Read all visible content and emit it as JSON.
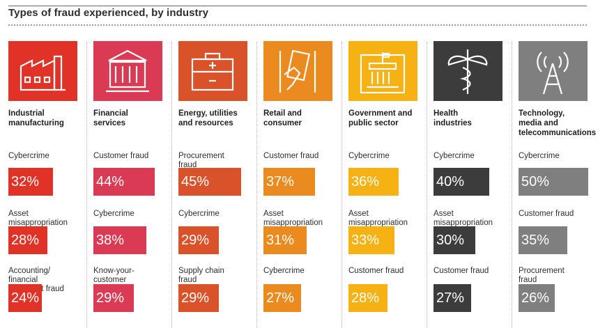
{
  "title": "Types of fraud experienced, by industry",
  "industries": [
    {
      "name": "Industrial\nmanufacturing",
      "icon": "factory-icon",
      "color": "#e03226",
      "rows": [
        {
          "label": "Cybercrime",
          "pct": "32%",
          "value": 32
        },
        {
          "label": "Asset\nmisappropriation",
          "pct": "28%",
          "value": 28
        },
        {
          "label": "Accounting/\nfinancial\nstatement fraud",
          "pct": "24%",
          "value": 24
        }
      ]
    },
    {
      "name": "Financial\nservices",
      "icon": "bank-icon",
      "color": "#db3a54",
      "rows": [
        {
          "label": "Customer fraud",
          "pct": "44%",
          "value": 44
        },
        {
          "label": "Cybercrime",
          "pct": "38%",
          "value": 38
        },
        {
          "label": "Know-your-\ncustomer\nfailure",
          "pct": "29%",
          "value": 29
        }
      ]
    },
    {
      "name": "Energy, utilities\nand resources",
      "icon": "battery-icon",
      "color": "#d9522a",
      "rows": [
        {
          "label": "Procurement\nfraud",
          "pct": "45%",
          "value": 45
        },
        {
          "label": "Cybercrime",
          "pct": "29%",
          "value": 29
        },
        {
          "label": "Supply chain\nfraud",
          "pct": "29%",
          "value": 29
        }
      ]
    },
    {
      "name": "Retail and\nconsumer",
      "icon": "card-in-hand-icon",
      "color": "#eb8a1e",
      "rows": [
        {
          "label": "Customer fraud",
          "pct": "37%",
          "value": 37
        },
        {
          "label": "Asset\nmisappropriation",
          "pct": "31%",
          "value": 31
        },
        {
          "label": "Cybercrime",
          "pct": "27%",
          "value": 27
        }
      ]
    },
    {
      "name": "Government and\npublic sector",
      "icon": "government-building-icon",
      "color": "#f6b112",
      "rows": [
        {
          "label": "Cybercrime",
          "pct": "36%",
          "value": 36
        },
        {
          "label": "Asset\nmisappropriation",
          "pct": "33%",
          "value": 33
        },
        {
          "label": "Customer fraud",
          "pct": "28%",
          "value": 28
        }
      ]
    },
    {
      "name": "Health\nindustries",
      "icon": "caduceus-icon",
      "color": "#3c3c3c",
      "rows": [
        {
          "label": "Cybercrime",
          "pct": "40%",
          "value": 40
        },
        {
          "label": "Asset\nmisappropriation",
          "pct": "30%",
          "value": 30
        },
        {
          "label": "Customer fraud",
          "pct": "27%",
          "value": 27
        }
      ]
    },
    {
      "name": "Technology,\nmedia and\ntelecommunications",
      "icon": "antenna-tower-icon",
      "color": "#7f7f7f",
      "rows": [
        {
          "label": "Cybercrime",
          "pct": "50%",
          "value": 50
        },
        {
          "label": "Customer fraud",
          "pct": "35%",
          "value": 35
        },
        {
          "label": "Procurement\nfraud",
          "pct": "26%",
          "value": 26
        }
      ]
    }
  ],
  "chart_data": {
    "type": "bar",
    "title": "Types of fraud experienced, by industry",
    "unit": "%",
    "orientation": "horizontal",
    "groups": [
      {
        "industry": "Industrial manufacturing",
        "categories": [
          "Cybercrime",
          "Asset misappropriation",
          "Accounting/financial statement fraud"
        ],
        "values": [
          32,
          28,
          24
        ]
      },
      {
        "industry": "Financial services",
        "categories": [
          "Customer fraud",
          "Cybercrime",
          "Know-your-customer failure"
        ],
        "values": [
          44,
          38,
          29
        ]
      },
      {
        "industry": "Energy, utilities and resources",
        "categories": [
          "Procurement fraud",
          "Cybercrime",
          "Supply chain fraud"
        ],
        "values": [
          45,
          29,
          29
        ]
      },
      {
        "industry": "Retail and consumer",
        "categories": [
          "Customer fraud",
          "Asset misappropriation",
          "Cybercrime"
        ],
        "values": [
          37,
          31,
          27
        ]
      },
      {
        "industry": "Government and public sector",
        "categories": [
          "Cybercrime",
          "Asset misappropriation",
          "Customer fraud"
        ],
        "values": [
          36,
          33,
          28
        ]
      },
      {
        "industry": "Health industries",
        "categories": [
          "Cybercrime",
          "Asset misappropriation",
          "Customer fraud"
        ],
        "values": [
          40,
          30,
          27
        ]
      },
      {
        "industry": "Technology, media and telecommunications",
        "categories": [
          "Cybercrime",
          "Customer fraud",
          "Procurement fraud"
        ],
        "values": [
          50,
          35,
          26
        ]
      }
    ]
  }
}
